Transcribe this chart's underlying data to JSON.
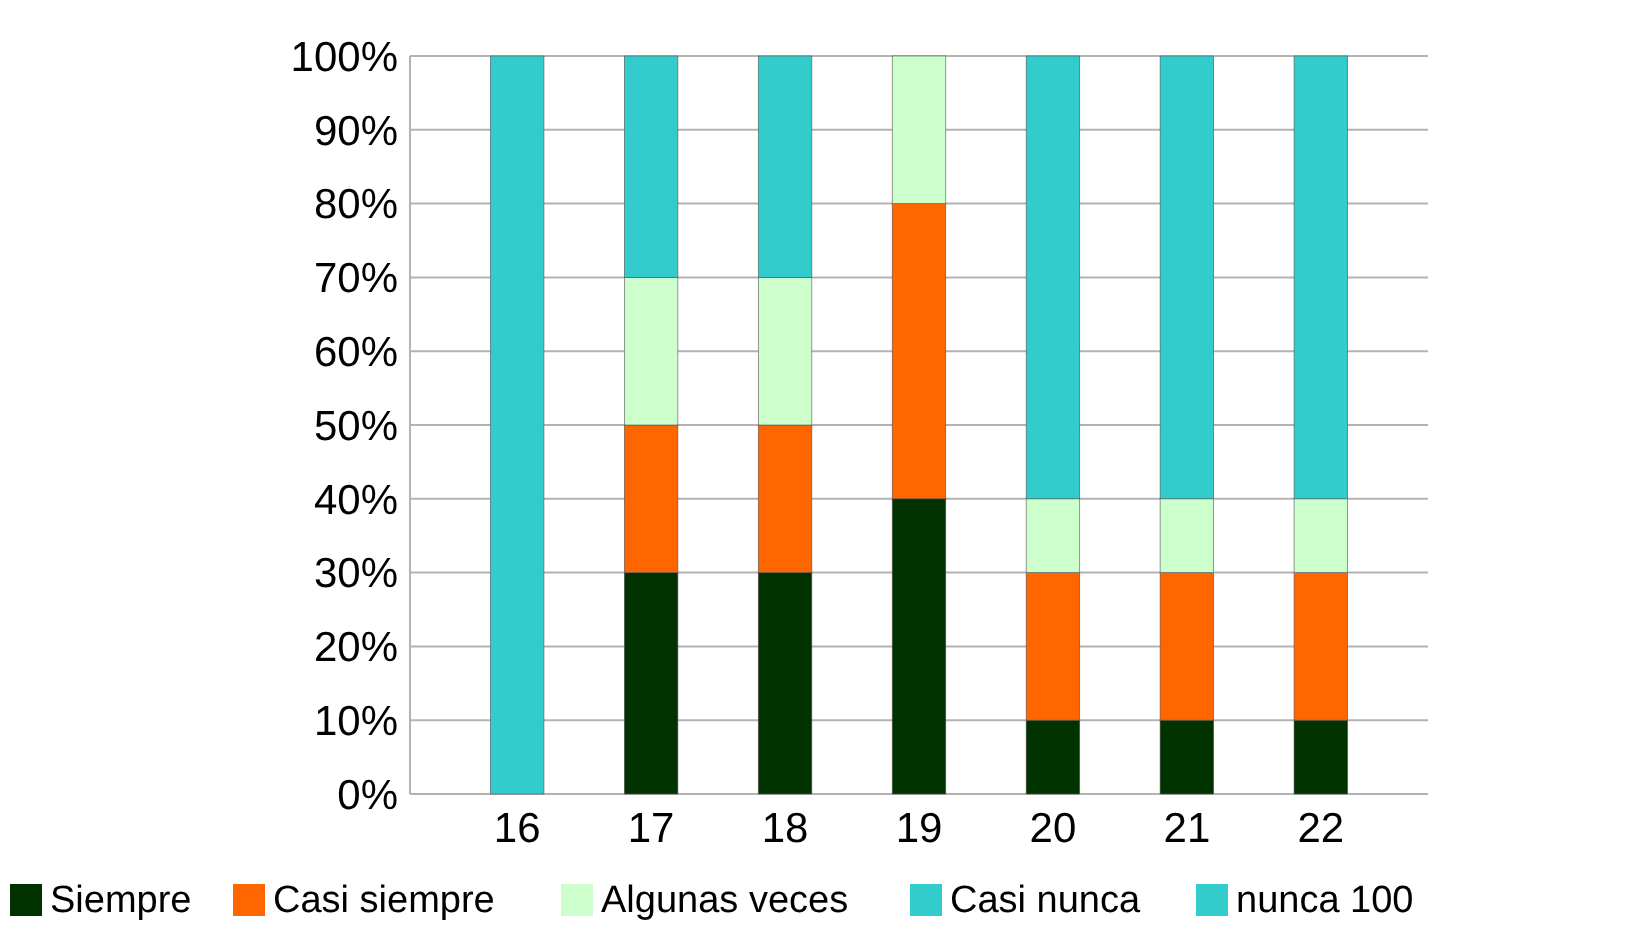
{
  "chart_data": {
    "type": "bar",
    "stacked": true,
    "categories": [
      "16",
      "17",
      "18",
      "19",
      "20",
      "21",
      "22"
    ],
    "series": [
      {
        "name": "Siempre",
        "color": "#003300",
        "values": [
          0,
          30,
          30,
          40,
          10,
          10,
          10
        ]
      },
      {
        "name": "Casi siempre",
        "color": "#ff6600",
        "values": [
          0,
          20,
          20,
          40,
          20,
          20,
          20
        ]
      },
      {
        "name": "Algunas veces",
        "color": "#ccffcc",
        "values": [
          0,
          20,
          20,
          20,
          10,
          10,
          10
        ]
      },
      {
        "name": "Casi nunca",
        "color": "#33cccc",
        "values": [
          0,
          30,
          30,
          0,
          60,
          60,
          60
        ]
      },
      {
        "name": "nunca 100",
        "color": "#33cccc",
        "values": [
          100,
          0,
          0,
          0,
          0,
          0,
          0
        ]
      }
    ],
    "ylim": [
      0,
      100
    ],
    "yticks": [
      {
        "value": 0,
        "label": "0%"
      },
      {
        "value": 10,
        "label": "10%"
      },
      {
        "value": 20,
        "label": "20%"
      },
      {
        "value": 30,
        "label": "30%"
      },
      {
        "value": 40,
        "label": "40%"
      },
      {
        "value": 50,
        "label": "50%"
      },
      {
        "value": 60,
        "label": "60%"
      },
      {
        "value": 70,
        "label": "70%"
      },
      {
        "value": 80,
        "label": "80%"
      },
      {
        "value": 90,
        "label": "90%"
      },
      {
        "value": 100,
        "label": "100%"
      }
    ],
    "grid": "y",
    "legend": "bottom"
  }
}
